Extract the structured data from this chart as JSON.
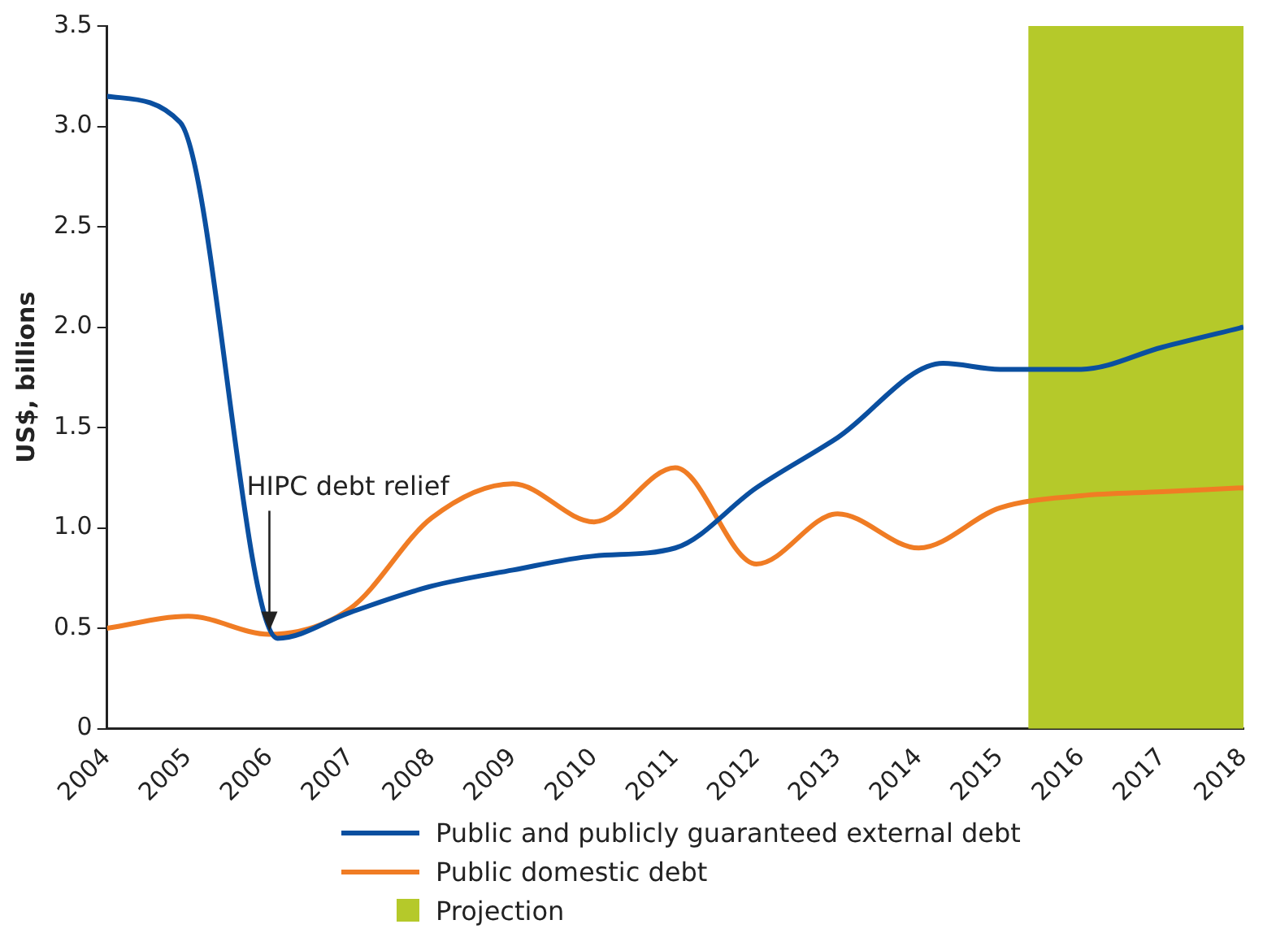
{
  "chart_data": {
    "type": "line",
    "ylabel": "US$, billions",
    "xlim": [
      2004,
      2018
    ],
    "xticks": [
      2004,
      2005,
      2006,
      2007,
      2008,
      2009,
      2010,
      2011,
      2012,
      2013,
      2014,
      2015,
      2016,
      2017,
      2018
    ],
    "ylim": [
      0,
      3.5
    ],
    "yticks": [
      0,
      0.5,
      {
        "value": 1,
        "label": "1.0"
      },
      1.5,
      {
        "value": 2,
        "label": "2.0"
      },
      2.5,
      {
        "value": 3,
        "label": "3.0"
      },
      3.5
    ],
    "series": [
      {
        "name": "Public and publicly guaranteed external debt",
        "color": "#0a4fa0",
        "x": [
          2004,
          2004.9,
          2006.1,
          2007,
          2008,
          2009,
          2010,
          2011,
          2012,
          2013,
          2014.3,
          2015,
          2016,
          2017,
          2018
        ],
        "values": [
          3.15,
          3.02,
          0.45,
          0.58,
          0.71,
          0.79,
          0.86,
          0.9,
          1.2,
          1.45,
          1.82,
          1.79,
          1.79,
          1.9,
          2.0
        ]
      },
      {
        "name": "Public domestic debt",
        "color": "#f07c24",
        "x": [
          2004,
          2005,
          2006,
          2007,
          2008,
          2009,
          2010,
          2011,
          2012,
          2013,
          2014,
          2015,
          2016,
          2017,
          2018
        ],
        "values": [
          0.5,
          0.56,
          0.47,
          0.6,
          1.05,
          1.22,
          1.03,
          1.3,
          0.82,
          1.07,
          0.9,
          1.1,
          1.16,
          1.18,
          1.2
        ]
      }
    ],
    "bands": [
      {
        "axis": "x",
        "from": 2015.35,
        "to": 2018,
        "label": "Projection",
        "color": "#b5c92a"
      }
    ],
    "annotations": [
      {
        "text": "HIPC debt relief",
        "x": 2006,
        "y": 0.47
      }
    ],
    "grid": false,
    "legend": "bottom",
    "marker": "none",
    "line_style": "solid"
  }
}
